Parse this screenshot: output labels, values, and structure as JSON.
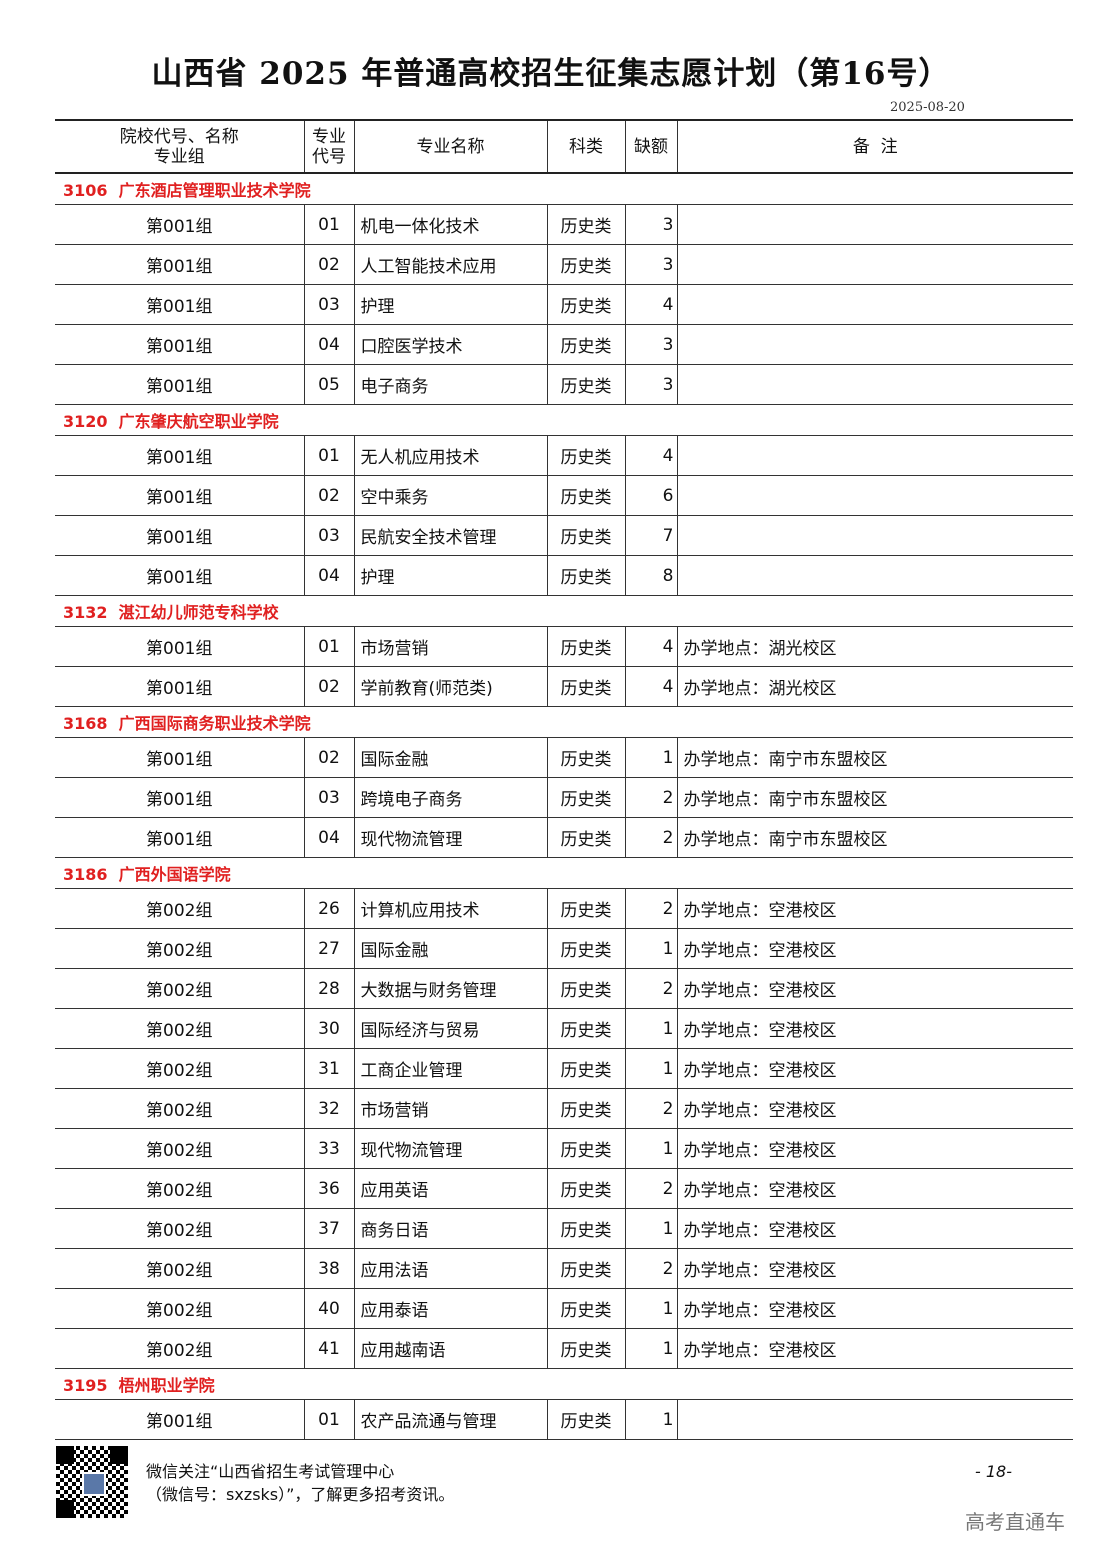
{
  "title": "山西省 2025 年普通高校招生征集志愿计划（第16号）",
  "date": "2025-08-20",
  "headers": {
    "school_line1": "院校代号、名称",
    "school_line2": "专业组",
    "code_line1": "专业",
    "code_line2": "代号",
    "major": "专业名称",
    "category": "科类",
    "quota": "缺额",
    "note": "备  注"
  },
  "sections": [
    {
      "school": "3106  广东酒店管理职业技术学院",
      "rows": [
        [
          "第001组",
          "01",
          "机电一体化技术",
          "历史类",
          "3",
          ""
        ],
        [
          "第001组",
          "02",
          "人工智能技术应用",
          "历史类",
          "3",
          ""
        ],
        [
          "第001组",
          "03",
          "护理",
          "历史类",
          "4",
          ""
        ],
        [
          "第001组",
          "04",
          "口腔医学技术",
          "历史类",
          "3",
          ""
        ],
        [
          "第001组",
          "05",
          "电子商务",
          "历史类",
          "3",
          ""
        ]
      ]
    },
    {
      "school": "3120  广东肇庆航空职业学院",
      "rows": [
        [
          "第001组",
          "01",
          "无人机应用技术",
          "历史类",
          "4",
          ""
        ],
        [
          "第001组",
          "02",
          "空中乘务",
          "历史类",
          "6",
          ""
        ],
        [
          "第001组",
          "03",
          "民航安全技术管理",
          "历史类",
          "7",
          ""
        ],
        [
          "第001组",
          "04",
          "护理",
          "历史类",
          "8",
          ""
        ]
      ]
    },
    {
      "school": "3132  湛江幼儿师范专科学校",
      "rows": [
        [
          "第001组",
          "01",
          "市场营销",
          "历史类",
          "4",
          "办学地点：湖光校区"
        ],
        [
          "第001组",
          "02",
          "学前教育(师范类)",
          "历史类",
          "4",
          "办学地点：湖光校区"
        ]
      ]
    },
    {
      "school": "3168  广西国际商务职业技术学院",
      "rows": [
        [
          "第001组",
          "02",
          "国际金融",
          "历史类",
          "1",
          "办学地点：南宁市东盟校区"
        ],
        [
          "第001组",
          "03",
          "跨境电子商务",
          "历史类",
          "2",
          "办学地点：南宁市东盟校区"
        ],
        [
          "第001组",
          "04",
          "现代物流管理",
          "历史类",
          "2",
          "办学地点：南宁市东盟校区"
        ]
      ]
    },
    {
      "school": "3186  广西外国语学院",
      "rows": [
        [
          "第002组",
          "26",
          "计算机应用技术",
          "历史类",
          "2",
          "办学地点：空港校区"
        ],
        [
          "第002组",
          "27",
          "国际金融",
          "历史类",
          "1",
          "办学地点：空港校区"
        ],
        [
          "第002组",
          "28",
          "大数据与财务管理",
          "历史类",
          "2",
          "办学地点：空港校区"
        ],
        [
          "第002组",
          "30",
          "国际经济与贸易",
          "历史类",
          "1",
          "办学地点：空港校区"
        ],
        [
          "第002组",
          "31",
          "工商企业管理",
          "历史类",
          "1",
          "办学地点：空港校区"
        ],
        [
          "第002组",
          "32",
          "市场营销",
          "历史类",
          "2",
          "办学地点：空港校区"
        ],
        [
          "第002组",
          "33",
          "现代物流管理",
          "历史类",
          "1",
          "办学地点：空港校区"
        ],
        [
          "第002组",
          "36",
          "应用英语",
          "历史类",
          "2",
          "办学地点：空港校区"
        ],
        [
          "第002组",
          "37",
          "商务日语",
          "历史类",
          "1",
          "办学地点：空港校区"
        ],
        [
          "第002组",
          "38",
          "应用法语",
          "历史类",
          "2",
          "办学地点：空港校区"
        ],
        [
          "第002组",
          "40",
          "应用泰语",
          "历史类",
          "1",
          "办学地点：空港校区"
        ],
        [
          "第002组",
          "41",
          "应用越南语",
          "历史类",
          "1",
          "办学地点：空港校区"
        ]
      ]
    },
    {
      "school": "3195  梧州职业学院",
      "rows": [
        [
          "第001组",
          "01",
          "农产品流通与管理",
          "历史类",
          "1",
          ""
        ]
      ]
    }
  ],
  "footer": {
    "line1": "微信关注“山西省招生考试管理中心",
    "line2": "（微信号：sxzsks）”，了解更多招考资讯。",
    "page": "- 18-",
    "watermark": "高考直通车",
    "qr_icon": "qr-code"
  }
}
